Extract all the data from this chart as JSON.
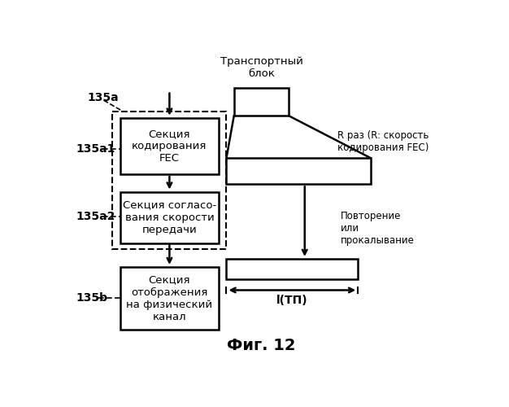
{
  "title": "Фиг. 12",
  "top_label": "Транспортный\nблок",
  "box1_text": "Секция\nкодирования\nFEC",
  "box2_text": "Секция согласо-\nвания скорости\nпередачи",
  "box3_text": "Секция\nотображения\nна физический\nканал",
  "label_135a": "135a",
  "label_135a1": "135a1",
  "label_135a2": "135a2",
  "label_135b": "135b",
  "right_label1": "R раз (R: скорость\nкодирования FEC)",
  "right_label2": "Повторение\nили\nпрокалывание",
  "bottom_arrow_label": "l(ТП)",
  "bg_color": "#ffffff"
}
